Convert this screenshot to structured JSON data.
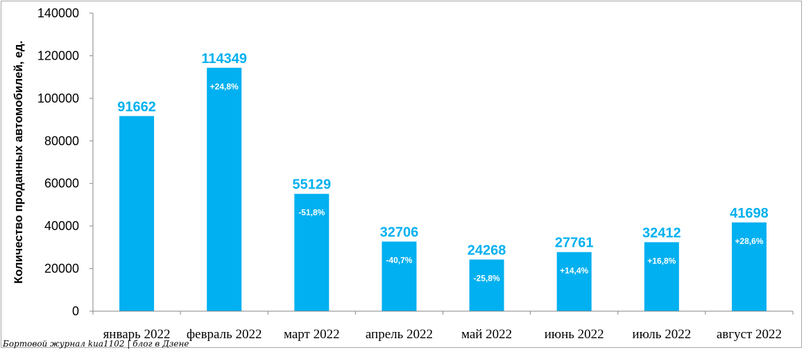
{
  "chart_data": {
    "type": "bar",
    "categories": [
      "январь 2022",
      "февраль 2022",
      "март 2022",
      "апрель 2022",
      "май 2022",
      "июнь 2022",
      "июль 2022",
      "август 2022"
    ],
    "values": [
      91662,
      114349,
      55129,
      32706,
      24268,
      27761,
      32412,
      41698
    ],
    "value_labels": [
      "91662",
      "114349",
      "55129",
      "32706",
      "24268",
      "27761",
      "32412",
      "41698"
    ],
    "change_labels": [
      "",
      "+24,8%",
      "-51,8%",
      "-40,7%",
      "-25,8%",
      "+14,4%",
      "+16,8%",
      "+28,6%"
    ],
    "ylabel": "Количество проданных  автомобилей, ед.",
    "ylim": [
      0,
      140000
    ],
    "yticks": [
      0,
      20000,
      40000,
      60000,
      80000,
      100000,
      120000,
      140000
    ],
    "ytick_labels": [
      "0",
      "20000",
      "40000",
      "60000",
      "80000",
      "100000",
      "120000",
      "140000"
    ],
    "grid": false,
    "legend": "none",
    "colors": {
      "bar": "#00b0f0",
      "value_label": "#00b0f0",
      "change_label": "#ffffff",
      "axis": "#868686"
    }
  },
  "watermark": "Бортовой журнал kua1102 | блог в Дзене"
}
